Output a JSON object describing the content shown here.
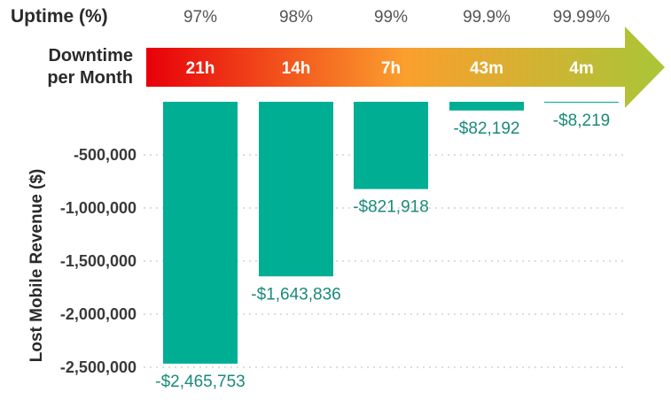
{
  "header": {
    "uptime_label": "Uptime (%)",
    "downtime_label_line1": "Downtime",
    "downtime_label_line2": "per Month"
  },
  "colors": {
    "bar": "#00ae94",
    "arrow_start": "#e8000a",
    "arrow_mid": "#fb9f2e",
    "arrow_end": "#a9c637",
    "grid": "#bbbbbb",
    "label": "#1a8a7a"
  },
  "chart_data": {
    "type": "bar",
    "categories": [
      "97%",
      "98%",
      "99%",
      "99.9%",
      "99.99%"
    ],
    "downtime": [
      "21h",
      "14h",
      "7h",
      "43m",
      "4m"
    ],
    "values": [
      -2465753,
      -1643836,
      -821918,
      -82192,
      -8219
    ],
    "data_labels": [
      "-$2,465,753",
      "-$1,643,836",
      "-$821,918",
      "-$82,192",
      "-$8,219"
    ],
    "ylabel": "Lost Mobile Revenue ($)",
    "yticks": [
      -500000,
      -1000000,
      -1500000,
      -2000000,
      -2500000
    ],
    "ytick_labels": [
      "-500,000",
      "-1,000,000",
      "-1,500,000",
      "-2,000,000",
      "-2,500,000"
    ],
    "ylim": [
      -2500000,
      0
    ],
    "grid": true
  }
}
